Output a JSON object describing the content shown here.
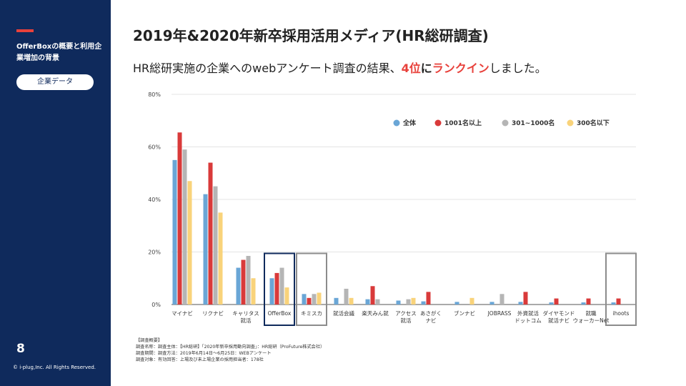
{
  "sidebar": {
    "section_title": "OfferBoxの概要と利用企業増加の背景",
    "pill_label": "企業データ",
    "page_number": "8",
    "copyright": "© i-plug,Inc. All Rights Reserved."
  },
  "header": {
    "title": "2019年&2020年新卒採用活用メディア(HR総研調査)",
    "subtitle_pre": "HR総研実施の企業へのwebアンケート調査の結果、",
    "subtitle_rank": "4位",
    "subtitle_ni": "に",
    "subtitle_rankin": "ランクイン",
    "subtitle_post": "しました。"
  },
  "notes": [
    "【調査概要】",
    "調査名称：調査主体：【HR総研】「2020年新卒採用動向調査」：HR総研（ProFuture株式会社）",
    "調査期間：調査方法：2019年6月14日〜6月25日：WEBアンケート",
    "調査対象：有効回答：上場及び未上場企業の採用担当者：178社"
  ],
  "colors": {
    "sidebar_bg": "#0f2a5c",
    "accent": "#e8413b",
    "highlight_box_navy": "#0f2a5c",
    "highlight_box_gray": "#8c8c8c"
  },
  "chart_data": {
    "type": "bar",
    "ylim": [
      0,
      80
    ],
    "yticks": [
      "0%",
      "20%",
      "40%",
      "60%",
      "80%"
    ],
    "grid": true,
    "legend_position": "top-right",
    "categories": [
      "マイナビ",
      "リクナビ",
      "キャリタス就活",
      "OfferBox",
      "キミスカ",
      "就活会議",
      "楽天みん就",
      "アクセス就活",
      "あさがくナビ",
      "ブンナビ",
      "JOBRASS",
      "外資就活ドットコム",
      "ダイヤモンド就活ナビ",
      "就職ウォーカーNet",
      "ihoots"
    ],
    "category_labels": [
      [
        "マイナビ"
      ],
      [
        "リクナビ"
      ],
      [
        "キャリタス",
        "就活"
      ],
      [
        "OfferBox"
      ],
      [
        "キミスカ"
      ],
      [
        "就活会議"
      ],
      [
        "楽天みん就"
      ],
      [
        "アクセス",
        "就活"
      ],
      [
        "あさがく",
        "ナビ"
      ],
      [
        "ブンナビ"
      ],
      [
        "JOBRASS"
      ],
      [
        "外資就活",
        "ドットコム"
      ],
      [
        "ダイヤモンド",
        "就活ナビ"
      ],
      [
        "就職",
        "ウォーカーNet"
      ],
      [
        "ihoots"
      ]
    ],
    "series": [
      {
        "name": "全体",
        "color": "#6aa6d6",
        "values": [
          55,
          42,
          14,
          10,
          4,
          2.5,
          2,
          1.5,
          1.2,
          1,
          1,
          1,
          0.8,
          0.8,
          0.8
        ]
      },
      {
        "name": "1001名以上",
        "color": "#d93a3a",
        "values": [
          65.5,
          54,
          17,
          12,
          2.5,
          0,
          7,
          0,
          4.8,
          0,
          0,
          4.8,
          2.3,
          2.3,
          2.3
        ]
      },
      {
        "name": "301~1000名",
        "color": "#b5b5b5",
        "values": [
          59,
          45,
          18.5,
          14,
          4,
          6,
          2,
          2,
          0,
          0,
          4,
          0,
          0,
          0,
          0
        ]
      },
      {
        "name": "300名以下",
        "color": "#f9d37a",
        "values": [
          47,
          35,
          10,
          6.5,
          4.5,
          2.5,
          0,
          2.5,
          0,
          2.5,
          0,
          0,
          0,
          0,
          0
        ]
      }
    ],
    "highlighted_categories": [
      {
        "category": "OfferBox",
        "style": "navy"
      },
      {
        "category": "キミスカ",
        "style": "gray"
      },
      {
        "category": "ihoots",
        "style": "gray"
      }
    ]
  }
}
